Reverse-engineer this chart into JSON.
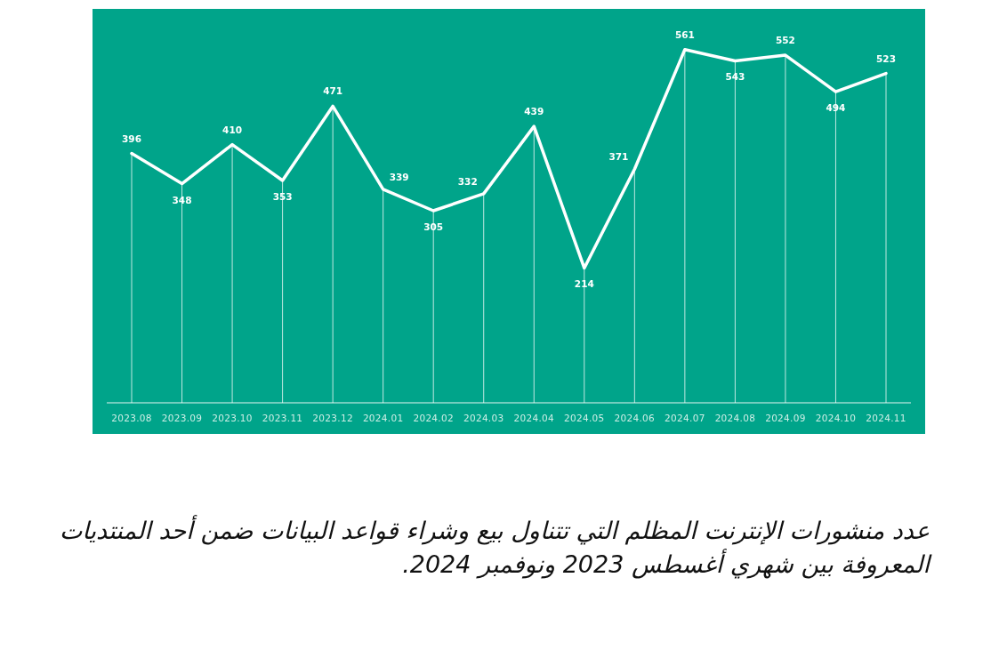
{
  "chart_data": {
    "type": "line",
    "categories": [
      "2023.08",
      "2023.09",
      "2023.10",
      "2023.11",
      "2023.12",
      "2024.01",
      "2024.02",
      "2024.03",
      "2024.04",
      "2024.05",
      "2024.06",
      "2024.07",
      "2024.08",
      "2024.09",
      "2024.10",
      "2024.11"
    ],
    "values": [
      396,
      348,
      410,
      353,
      471,
      339,
      305,
      332,
      439,
      214,
      371,
      561,
      543,
      552,
      494,
      523
    ],
    "color": "#ffffff",
    "data_labels": true,
    "marker": "none",
    "grid": "x",
    "annotations": [
      "عدد منشورات الإنترنت المظلم التي تتناول بيع وشراء قواعد البيانات ضمن أحد المنتديات المعروفة بين شهري أغسطس 2023 ونوفمبر 2024."
    ]
  }
}
